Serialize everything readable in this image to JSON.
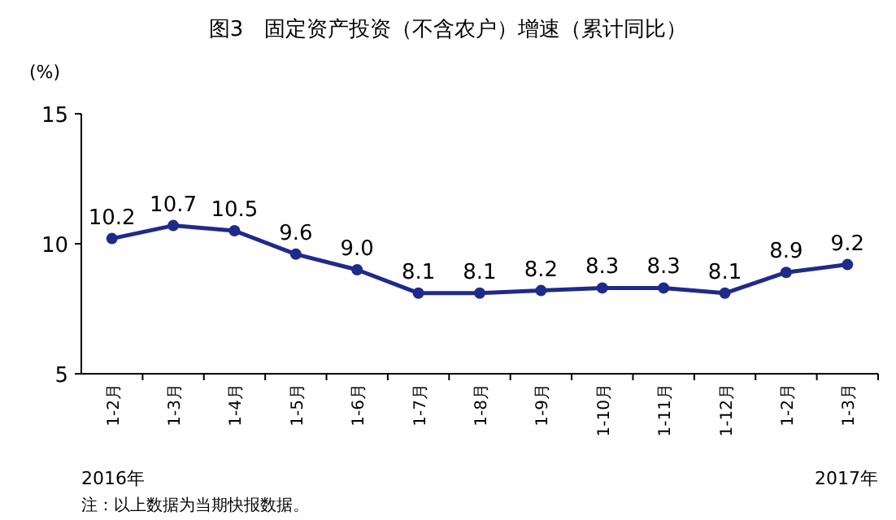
{
  "chart_data": {
    "type": "line",
    "title": "图3　固定资产投资（不含农户）增速（累计同比）",
    "ylabel": "(%)",
    "categories": [
      "1-2月",
      "1-3月",
      "1-4月",
      "1-5月",
      "1-6月",
      "1-7月",
      "1-8月",
      "1-9月",
      "1-10月",
      "1-11月",
      "1-12月",
      "1-2月",
      "1-3月"
    ],
    "values": [
      10.2,
      10.7,
      10.5,
      9.6,
      9.0,
      8.1,
      8.1,
      8.2,
      8.3,
      8.3,
      8.1,
      8.9,
      9.2
    ],
    "value_labels": [
      "10.2",
      "10.7",
      "10.5",
      "9.6",
      "9.0",
      "8.1",
      "8.1",
      "8.2",
      "8.3",
      "8.3",
      "8.1",
      "8.9",
      "9.2"
    ],
    "color": "#1f2a8a",
    "ylim": [
      5,
      15
    ],
    "yticks": [
      5,
      10,
      15
    ],
    "marker": "circle",
    "line_style": "solid",
    "annotations": [
      "2016年",
      "2017年",
      "注：以上数据为当期快报数据。"
    ]
  }
}
